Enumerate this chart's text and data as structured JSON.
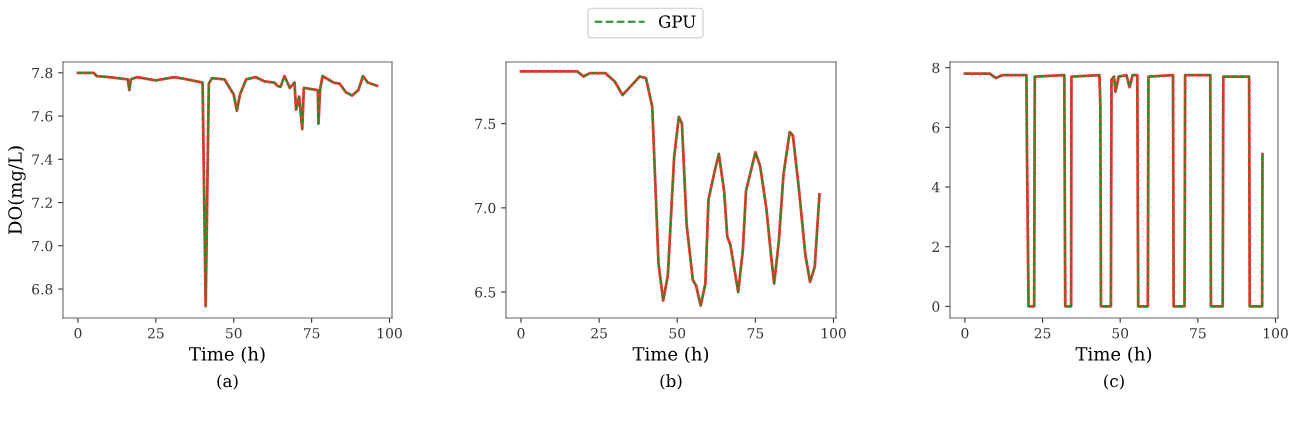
{
  "chart_data": [
    {
      "type": "line",
      "xlabel": "Time (h)",
      "ylabel": "DO(mg/L)",
      "annotations": [
        "(a)"
      ],
      "legend": "top",
      "xlim": [
        -4.8,
        100.8
      ],
      "xticks": [
        0,
        25,
        50,
        75,
        100
      ],
      "ylim": [
        6.666,
        7.85
      ],
      "yticks": [
        6.8,
        {
          "value": 7,
          "label": "7.0"
        },
        7.2,
        7.4,
        7.6,
        7.8
      ],
      "x": [
        0,
        5,
        6,
        10,
        16,
        16.5,
        17,
        19,
        25,
        31,
        35,
        40,
        41,
        42,
        43,
        47,
        50,
        51,
        52,
        54,
        57,
        60,
        63,
        64,
        65,
        66.3,
        68,
        69.5,
        70,
        71,
        72,
        72.5,
        77,
        77.2,
        77.7,
        78.5,
        82,
        84,
        86,
        88,
        90,
        91.5,
        93,
        96
      ],
      "series": [
        {
          "color": "#ff3030",
          "line_style": "solid",
          "values": [
            7.8,
            7.8,
            7.785,
            7.78,
            7.77,
            7.72,
            7.77,
            7.78,
            7.765,
            7.78,
            7.77,
            7.755,
            6.72,
            7.75,
            7.775,
            7.77,
            7.7,
            7.625,
            7.7,
            7.77,
            7.78,
            7.76,
            7.755,
            7.74,
            7.735,
            7.785,
            7.73,
            7.755,
            7.63,
            7.69,
            7.54,
            7.73,
            7.72,
            7.565,
            7.72,
            7.785,
            7.755,
            7.75,
            7.71,
            7.695,
            7.72,
            7.785,
            7.755,
            7.74
          ]
        },
        {
          "name": "GPU",
          "color": "#1f8f1f",
          "line_style": "dashed",
          "values": [
            7.8,
            7.8,
            7.785,
            7.78,
            7.77,
            7.72,
            7.77,
            7.78,
            7.765,
            7.78,
            7.77,
            7.755,
            6.72,
            7.75,
            7.775,
            7.77,
            7.7,
            7.625,
            7.7,
            7.77,
            7.78,
            7.76,
            7.755,
            7.74,
            7.735,
            7.785,
            7.73,
            7.755,
            7.63,
            7.69,
            7.54,
            7.73,
            7.72,
            7.565,
            7.72,
            7.785,
            7.755,
            7.75,
            7.71,
            7.695,
            7.72,
            7.785,
            7.755,
            7.74
          ]
        }
      ]
    },
    {
      "type": "line",
      "xlabel": "Time (h)",
      "annotations": [
        "(b)"
      ],
      "xlim": [
        -4.8,
        100.8
      ],
      "xticks": [
        0,
        25,
        50,
        75,
        100
      ],
      "ylim": [
        6.346,
        7.866
      ],
      "yticks": [
        6.5,
        {
          "value": 7,
          "label": "7.0"
        },
        7.5
      ],
      "x": [
        0,
        18,
        20,
        22,
        27,
        30,
        32.5,
        35,
        38,
        40,
        42,
        44,
        45.5,
        47,
        49,
        50.5,
        51.5,
        53,
        55,
        56,
        57.5,
        59,
        60,
        62,
        63.3,
        65,
        66,
        67,
        69.5,
        71,
        72,
        75,
        76.5,
        78.5,
        80,
        81,
        82.5,
        84,
        86,
        87,
        89,
        91,
        92.5,
        94,
        95.5
      ],
      "series": [
        {
          "color": "#ff3030",
          "line_style": "solid",
          "values": [
            7.81,
            7.81,
            7.78,
            7.8,
            7.8,
            7.75,
            7.67,
            7.72,
            7.78,
            7.77,
            7.6,
            6.67,
            6.45,
            6.6,
            7.3,
            7.54,
            7.5,
            6.9,
            6.57,
            6.54,
            6.42,
            6.55,
            7.05,
            7.22,
            7.32,
            7.1,
            6.83,
            6.78,
            6.5,
            6.75,
            7.1,
            7.33,
            7.25,
            7.0,
            6.72,
            6.55,
            6.8,
            7.2,
            7.45,
            7.43,
            7.1,
            6.72,
            6.56,
            6.65,
            7.08
          ]
        },
        {
          "name": "GPU",
          "color": "#1f8f1f",
          "line_style": "dashed",
          "values": [
            7.81,
            7.81,
            7.78,
            7.8,
            7.8,
            7.75,
            7.67,
            7.72,
            7.78,
            7.77,
            7.6,
            6.67,
            6.45,
            6.6,
            7.3,
            7.54,
            7.5,
            6.9,
            6.57,
            6.54,
            6.42,
            6.55,
            7.05,
            7.22,
            7.32,
            7.1,
            6.83,
            6.78,
            6.5,
            6.75,
            7.1,
            7.33,
            7.25,
            7.0,
            6.72,
            6.55,
            6.8,
            7.2,
            7.45,
            7.43,
            7.1,
            6.72,
            6.56,
            6.65,
            7.08
          ]
        }
      ]
    },
    {
      "type": "line",
      "xlabel": "Time (h)",
      "annotations": [
        "(c)"
      ],
      "xlim": [
        -4.8,
        100.8
      ],
      "xticks": [
        0,
        25,
        50,
        75,
        100
      ],
      "ylim": [
        -0.39,
        8.19
      ],
      "yticks": [
        0,
        2,
        4,
        6,
        8
      ],
      "x": [
        0,
        8,
        10,
        12,
        19.8,
        20,
        20.5,
        22.3,
        22.5,
        32,
        32.1,
        32.3,
        34.2,
        34.3,
        43.3,
        43.6,
        43.8,
        47,
        47.2,
        48,
        48.5,
        49.5,
        52,
        53,
        54,
        55.5,
        55.8,
        58.9,
        59.1,
        67,
        67.2,
        70.7,
        70.9,
        79,
        79.2,
        83,
        83.2,
        91.5,
        91.7,
        95.7,
        95.8
      ],
      "series": [
        {
          "color": "#ff3030",
          "line_style": "solid",
          "values": [
            7.8,
            7.8,
            7.65,
            7.75,
            7.75,
            5.0,
            0,
            0,
            7.7,
            7.75,
            5.0,
            0,
            0,
            7.7,
            7.75,
            6.8,
            0,
            0,
            7.6,
            7.7,
            7.2,
            7.7,
            7.75,
            7.35,
            7.75,
            7.75,
            0,
            0,
            7.7,
            7.75,
            0,
            0,
            7.75,
            7.75,
            0,
            0,
            7.7,
            7.7,
            0,
            0,
            5.1
          ]
        },
        {
          "name": "GPU",
          "color": "#1f8f1f",
          "line_style": "dashed",
          "values": [
            7.8,
            7.8,
            7.65,
            7.75,
            7.75,
            5.0,
            0,
            0,
            7.7,
            7.75,
            5.0,
            0,
            0,
            7.7,
            7.75,
            6.8,
            0,
            0,
            7.6,
            7.7,
            7.2,
            7.7,
            7.75,
            7.35,
            7.75,
            7.75,
            0,
            0,
            7.7,
            7.75,
            0,
            0,
            7.75,
            7.75,
            0,
            0,
            7.7,
            7.7,
            0,
            0,
            5.1
          ]
        }
      ]
    }
  ]
}
